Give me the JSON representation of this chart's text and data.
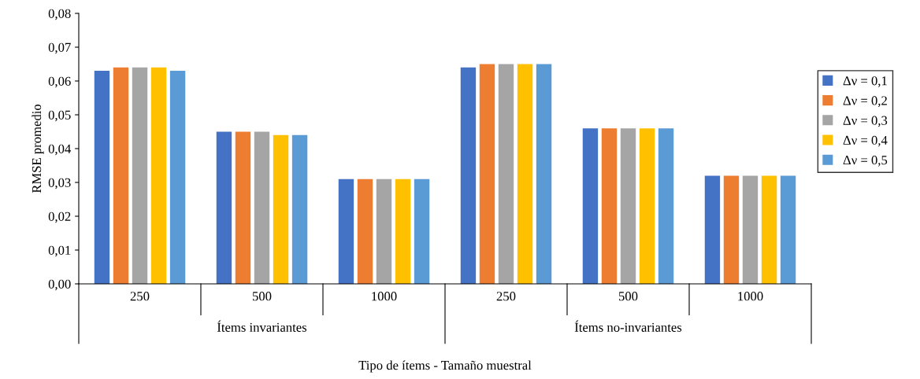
{
  "chart_data": {
    "type": "bar",
    "xlabel": "Tipo de ítems - Tamaño muestral",
    "ylabel": "RMSE promedio",
    "categories": [
      "250",
      "500",
      "1000",
      "250",
      "500",
      "1000"
    ],
    "annotations": [
      "Ítems invariantes",
      "Ítems no-invariantes"
    ],
    "series": [
      {
        "name": "Δν = 0,1",
        "color": "#4472c4",
        "values": [
          0.063,
          0.045,
          0.031,
          0.064,
          0.046,
          0.032
        ]
      },
      {
        "name": "Δν = 0,2",
        "color": "#ed7d31",
        "values": [
          0.064,
          0.045,
          0.031,
          0.065,
          0.046,
          0.032
        ]
      },
      {
        "name": "Δν = 0,3",
        "color": "#a5a5a5",
        "values": [
          0.064,
          0.045,
          0.031,
          0.065,
          0.046,
          0.032
        ]
      },
      {
        "name": "Δν = 0,4",
        "color": "#ffc000",
        "values": [
          0.064,
          0.044,
          0.031,
          0.065,
          0.046,
          0.032
        ]
      },
      {
        "name": "Δν = 0,5",
        "color": "#5b9bd5",
        "values": [
          0.063,
          0.044,
          0.031,
          0.065,
          0.046,
          0.032
        ]
      }
    ],
    "ylim": [
      0,
      0.08
    ],
    "yticks": [
      {
        "value": 0,
        "label": "0,00"
      },
      {
        "value": 0.01,
        "label": "0,01"
      },
      {
        "value": 0.02,
        "label": "0,02"
      },
      {
        "value": 0.03,
        "label": "0,03"
      },
      {
        "value": 0.04,
        "label": "0,04"
      },
      {
        "value": 0.05,
        "label": "0,05"
      },
      {
        "value": 0.06,
        "label": "0,06"
      },
      {
        "value": 0.07,
        "label": "0,07"
      },
      {
        "value": 0.08,
        "label": "0,08"
      }
    ],
    "legend": "right",
    "grid": false
  }
}
